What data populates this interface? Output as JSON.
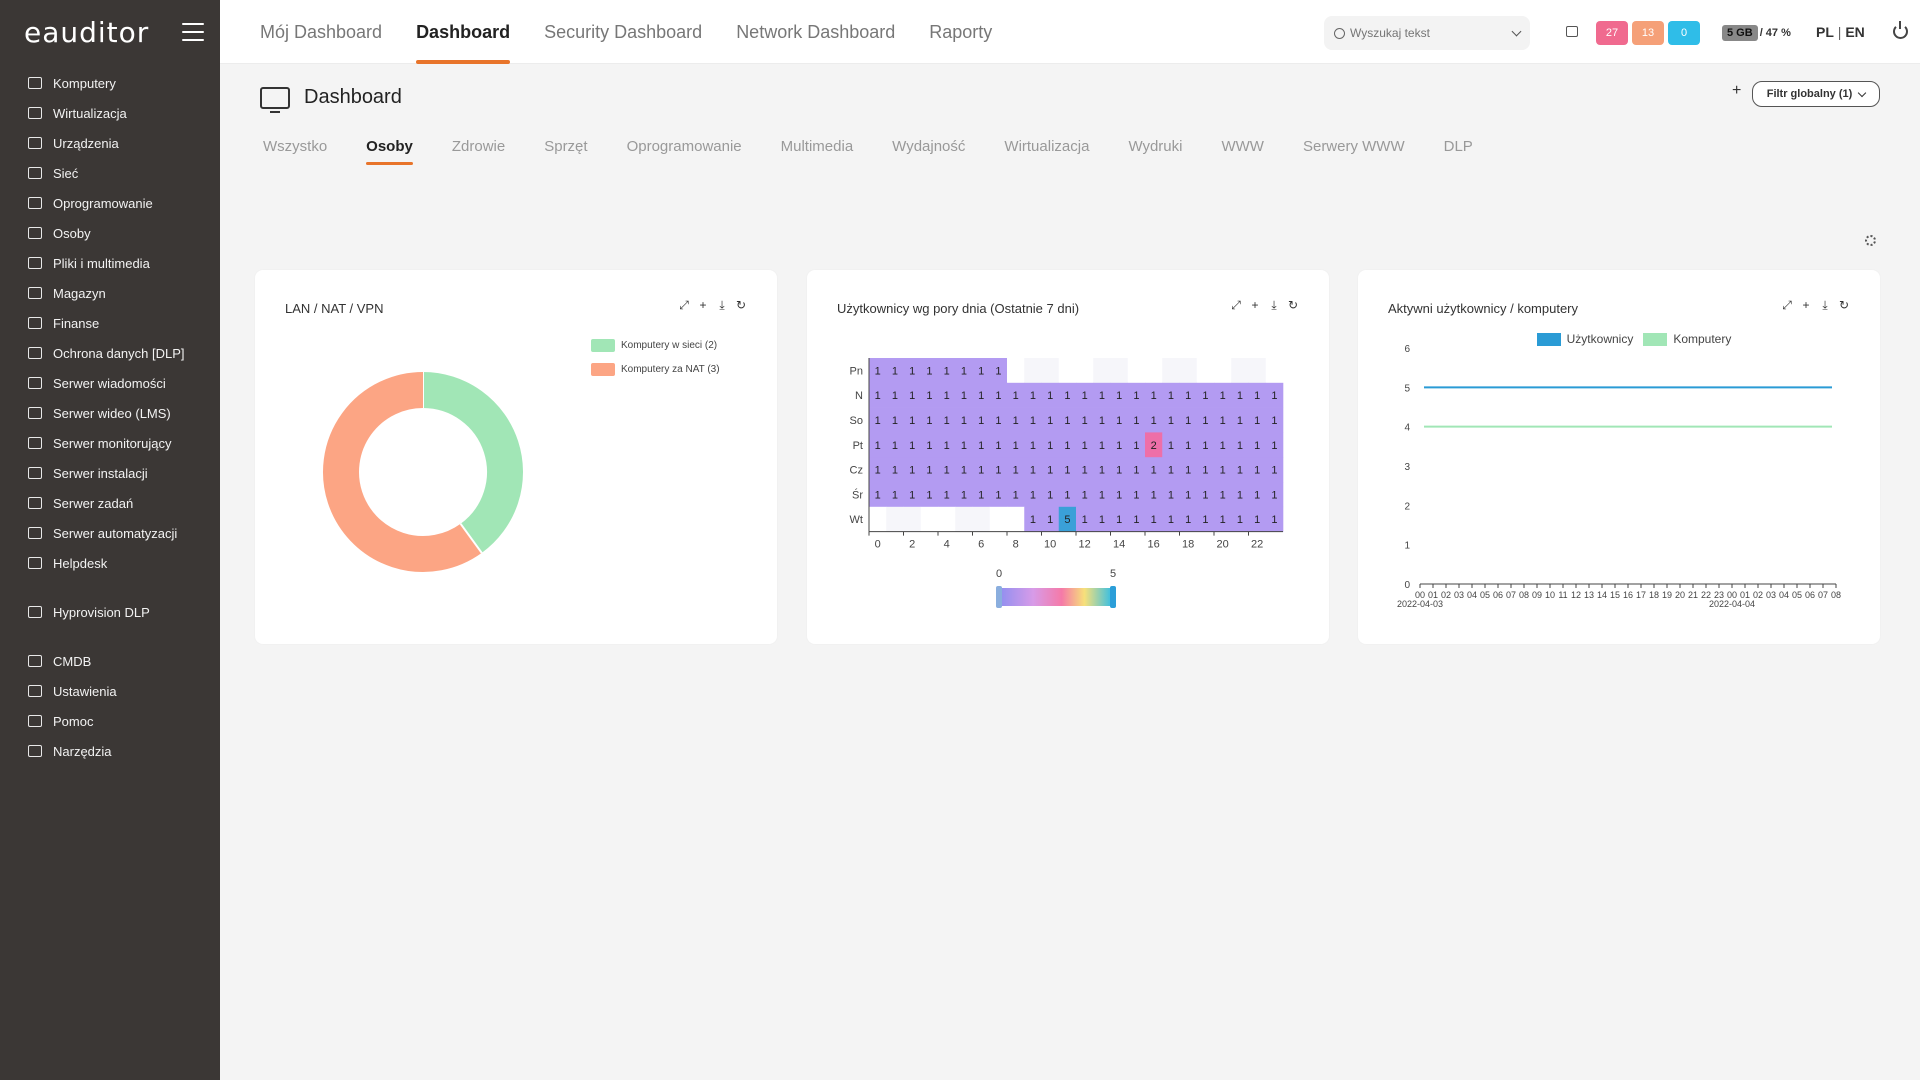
{
  "app": {
    "logo": "eauditor"
  },
  "sidebar": {
    "items": [
      {
        "label": "Komputery",
        "icon": "monitor-icon"
      },
      {
        "label": "Wirtualizacja",
        "icon": "server-icon"
      },
      {
        "label": "Urządzenia",
        "icon": "devices-icon"
      },
      {
        "label": "Sieć",
        "icon": "network-icon"
      },
      {
        "label": "Oprogramowanie",
        "icon": "software-icon"
      },
      {
        "label": "Osoby",
        "icon": "users-icon"
      },
      {
        "label": "Pliki i multimedia",
        "icon": "file-icon"
      },
      {
        "label": "Magazyn",
        "icon": "warehouse-icon"
      },
      {
        "label": "Finanse",
        "icon": "wallet-icon"
      },
      {
        "label": "Ochrona danych [DLP]",
        "icon": "shield-icon"
      },
      {
        "label": "Serwer wiadomości",
        "icon": "mail-icon"
      },
      {
        "label": "Serwer wideo (LMS)",
        "icon": "video-icon"
      },
      {
        "label": "Serwer monitorujący",
        "icon": "monitoring-icon"
      },
      {
        "label": "Serwer instalacji",
        "icon": "install-icon"
      },
      {
        "label": "Serwer zadań",
        "icon": "tasks-icon"
      },
      {
        "label": "Serwer automatyzacji",
        "icon": "automation-icon"
      },
      {
        "label": "Helpdesk",
        "icon": "helpdesk-icon"
      }
    ],
    "items2": [
      {
        "label": "Hyprovision DLP",
        "icon": "user-key-icon"
      }
    ],
    "items3": [
      {
        "label": "CMDB",
        "icon": "database-icon"
      },
      {
        "label": "Ustawienia",
        "icon": "gear-icon"
      },
      {
        "label": "Pomoc",
        "icon": "help-icon"
      },
      {
        "label": "Narzędzia",
        "icon": "tools-icon"
      }
    ]
  },
  "topbar": {
    "tabs": [
      "Mój Dashboard",
      "Dashboard",
      "Security Dashboard",
      "Network Dashboard",
      "Raporty"
    ],
    "active_tab": "Dashboard",
    "search_placeholder": "Wyszukaj tekst",
    "badges": [
      {
        "value": "27",
        "color": "#f06a8f"
      },
      {
        "value": "13",
        "color": "#f5a078"
      },
      {
        "value": "0",
        "color": "#2fbde8"
      }
    ],
    "storage_value": "5 GB",
    "storage_percent": "/ 47 %",
    "lang_active": "PL",
    "lang_sep": " | ",
    "lang_other": "EN"
  },
  "page": {
    "title": "Dashboard",
    "filter_label": "Filtr globalny (1)",
    "plus": "+",
    "subtabs": [
      "Wszystko",
      "Osoby",
      "Zdrowie",
      "Sprzęt",
      "Oprogramowanie",
      "Multimedia",
      "Wydajność",
      "Wirtualizacja",
      "Wydruki",
      "WWW",
      "Serwery WWW",
      "DLP"
    ],
    "active_subtab": "Osoby"
  },
  "cards": {
    "lan": {
      "title": "LAN / NAT / VPN"
    },
    "heatmap": {
      "title": "Użytkownicy wg pory dnia (Ostatnie 7 dni)"
    },
    "active": {
      "title": "Aktywni użytkownicy / komputery"
    }
  },
  "chart_data": [
    {
      "type": "pie",
      "variant": "donut",
      "title": "LAN / NAT / VPN",
      "categories": [
        "Komputery w sieci (2)",
        "Komputery za NAT (3)"
      ],
      "values": [
        2,
        3
      ],
      "colors": [
        "#a1e6b6",
        "#fca584"
      ],
      "legend": "top-right"
    },
    {
      "type": "heatmap",
      "title": "Użytkownicy wg pory dnia (Ostatnie 7 dni)",
      "rows": [
        "Pn",
        "N",
        "So",
        "Pt",
        "Cz",
        "Śr",
        "Wt"
      ],
      "columns": [
        0,
        1,
        2,
        3,
        4,
        5,
        6,
        7,
        8,
        9,
        10,
        11,
        12,
        13,
        14,
        15,
        16,
        17,
        18,
        19,
        20,
        21,
        22,
        23
      ],
      "x_ticks": [
        0,
        2,
        4,
        6,
        8,
        10,
        12,
        14,
        16,
        18,
        20,
        22
      ],
      "values": [
        [
          1,
          1,
          1,
          1,
          1,
          1,
          1,
          1,
          null,
          null,
          null,
          null,
          null,
          null,
          null,
          null,
          null,
          null,
          null,
          null,
          null,
          null,
          null,
          null
        ],
        [
          1,
          1,
          1,
          1,
          1,
          1,
          1,
          1,
          1,
          1,
          1,
          1,
          1,
          1,
          1,
          1,
          1,
          1,
          1,
          1,
          1,
          1,
          1,
          1
        ],
        [
          1,
          1,
          1,
          1,
          1,
          1,
          1,
          1,
          1,
          1,
          1,
          1,
          1,
          1,
          1,
          1,
          1,
          1,
          1,
          1,
          1,
          1,
          1,
          1
        ],
        [
          1,
          1,
          1,
          1,
          1,
          1,
          1,
          1,
          1,
          1,
          1,
          1,
          1,
          1,
          1,
          1,
          2,
          1,
          1,
          1,
          1,
          1,
          1,
          1
        ],
        [
          1,
          1,
          1,
          1,
          1,
          1,
          1,
          1,
          1,
          1,
          1,
          1,
          1,
          1,
          1,
          1,
          1,
          1,
          1,
          1,
          1,
          1,
          1,
          1
        ],
        [
          1,
          1,
          1,
          1,
          1,
          1,
          1,
          1,
          1,
          1,
          1,
          1,
          1,
          1,
          1,
          1,
          1,
          1,
          1,
          1,
          1,
          1,
          1,
          1
        ],
        [
          null,
          null,
          null,
          null,
          null,
          null,
          null,
          null,
          null,
          1,
          1,
          5,
          1,
          1,
          1,
          1,
          1,
          1,
          1,
          1,
          1,
          1,
          1,
          1
        ]
      ],
      "visual_min": 0,
      "visual_max": 5,
      "colors": {
        "base": "#b39bf2",
        "two": "#ee6fa8",
        "five": "#3aa0d8",
        "empty": "#f6f6fa"
      }
    },
    {
      "type": "line",
      "title": "Aktywni użytkownicy / komputery",
      "x_ticks": [
        "00",
        "01",
        "02",
        "03",
        "04",
        "05",
        "06",
        "07",
        "08",
        "09",
        "10",
        "11",
        "12",
        "13",
        "14",
        "15",
        "16",
        "17",
        "18",
        "19",
        "20",
        "21",
        "22",
        "23",
        "00",
        "01",
        "02",
        "03",
        "04",
        "05",
        "06",
        "07",
        "08"
      ],
      "date_labels": [
        "2022-04-03",
        "2022-04-04"
      ],
      "ylim": [
        0,
        6
      ],
      "y_ticks": [
        0,
        1,
        2,
        3,
        4,
        5,
        6
      ],
      "series": [
        {
          "name": "Użytkownicy",
          "color": "#2a9bd5",
          "value": 5
        },
        {
          "name": "Komputery",
          "color": "#a1e6b6",
          "value": 4
        }
      ],
      "legend": "top"
    }
  ]
}
